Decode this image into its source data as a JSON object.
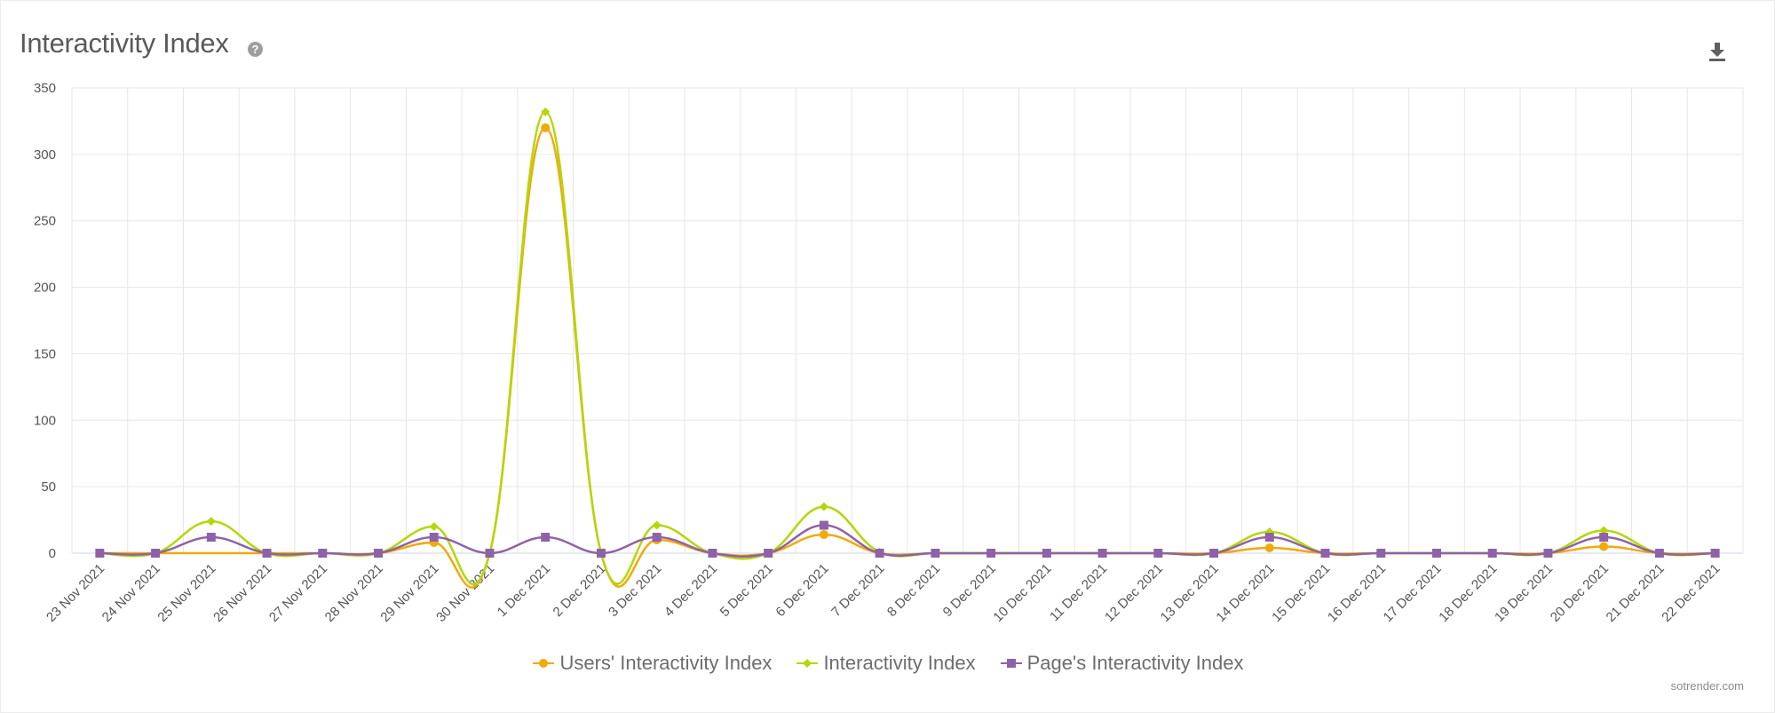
{
  "header": {
    "title": "Interactivity Index",
    "help_glyph": "?",
    "help_icon": "question-circle-icon",
    "download_icon": "download-icon"
  },
  "chart_data": {
    "type": "line",
    "title": "Interactivity Index",
    "xlabel": "",
    "ylabel": "",
    "ylim": [
      0,
      350
    ],
    "yticks": [
      0,
      50,
      100,
      150,
      200,
      250,
      300,
      350
    ],
    "grid": true,
    "legend_position": "bottom-center",
    "categories": [
      "23 Nov 2021",
      "24 Nov 2021",
      "25 Nov 2021",
      "26 Nov 2021",
      "27 Nov 2021",
      "28 Nov 2021",
      "29 Nov 2021",
      "30 Nov 2021",
      "1 Dec 2021",
      "2 Dec 2021",
      "3 Dec 2021",
      "4 Dec 2021",
      "5 Dec 2021",
      "6 Dec 2021",
      "7 Dec 2021",
      "8 Dec 2021",
      "9 Dec 2021",
      "10 Dec 2021",
      "11 Dec 2021",
      "12 Dec 2021",
      "13 Dec 2021",
      "14 Dec 2021",
      "15 Dec 2021",
      "16 Dec 2021",
      "17 Dec 2021",
      "18 Dec 2021",
      "19 Dec 2021",
      "20 Dec 2021",
      "21 Dec 2021",
      "22 Dec 2021"
    ],
    "series": [
      {
        "name": "Users' Interactivity Index",
        "color": "#f2a90c",
        "marker": "circle",
        "values": [
          null,
          null,
          null,
          0,
          null,
          null,
          8,
          null,
          320,
          null,
          10,
          null,
          null,
          14,
          null,
          null,
          null,
          null,
          null,
          null,
          null,
          4,
          null,
          null,
          null,
          null,
          null,
          5,
          null,
          null
        ]
      },
      {
        "name": "Interactivity Index",
        "color": "#b5d60a",
        "marker": "diamond",
        "values": [
          null,
          null,
          24,
          0,
          null,
          null,
          20,
          null,
          332,
          null,
          21,
          null,
          null,
          35,
          1,
          null,
          null,
          null,
          null,
          null,
          null,
          16,
          null,
          null,
          null,
          null,
          null,
          17,
          null,
          null
        ]
      },
      {
        "name": "Page's Interactivity Index",
        "color": "#8e62a8",
        "marker": "square",
        "values": [
          0,
          0,
          12,
          0,
          0,
          0,
          12,
          0,
          12,
          0,
          12,
          0,
          0,
          21,
          0,
          0,
          0,
          0,
          0,
          0,
          0,
          12,
          0,
          0,
          0,
          0,
          0,
          12,
          0,
          0
        ]
      }
    ]
  },
  "footer": {
    "watermark": "sotrender.com"
  }
}
